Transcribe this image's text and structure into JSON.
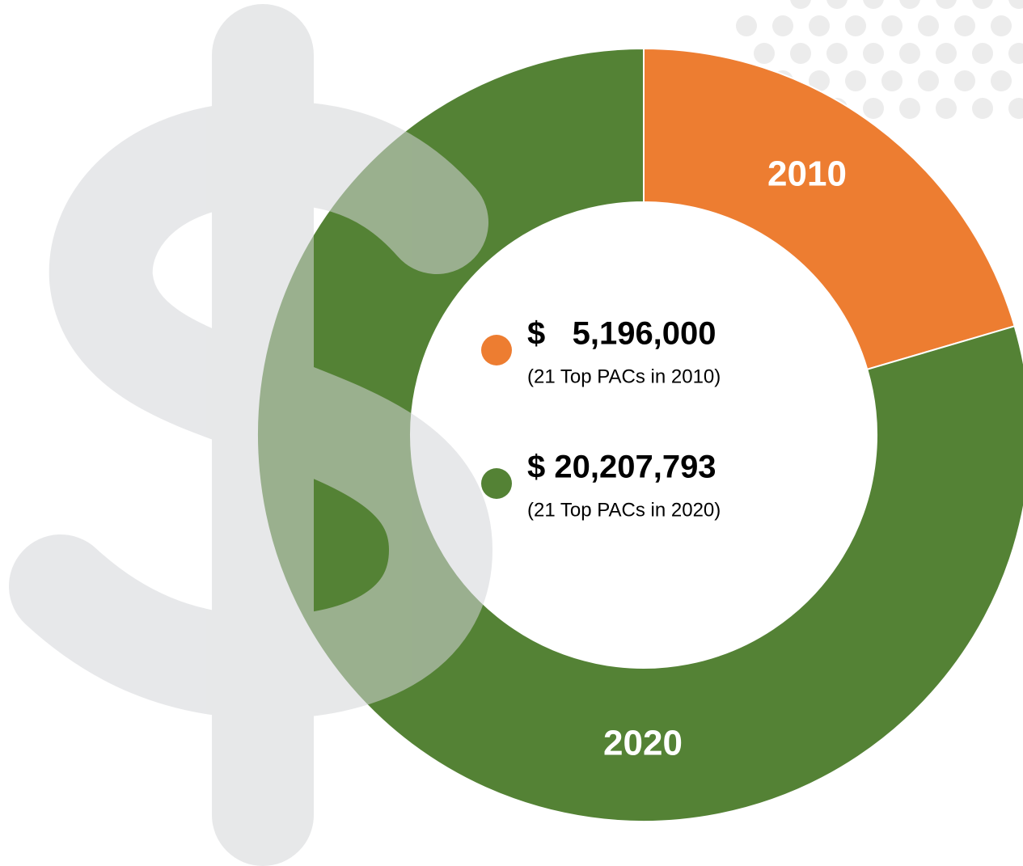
{
  "chart_data": {
    "type": "donut",
    "categories": [
      "2010",
      "2020"
    ],
    "values": [
      5196000,
      20207793
    ],
    "value_labels": [
      "$   5,196,000",
      "$ 20,207,793"
    ],
    "descriptions": [
      "(21 Top PACs in 2010)",
      "(21 Top PACs in 2020)"
    ],
    "colors": [
      "#ed7d31",
      "#548235"
    ]
  }
}
